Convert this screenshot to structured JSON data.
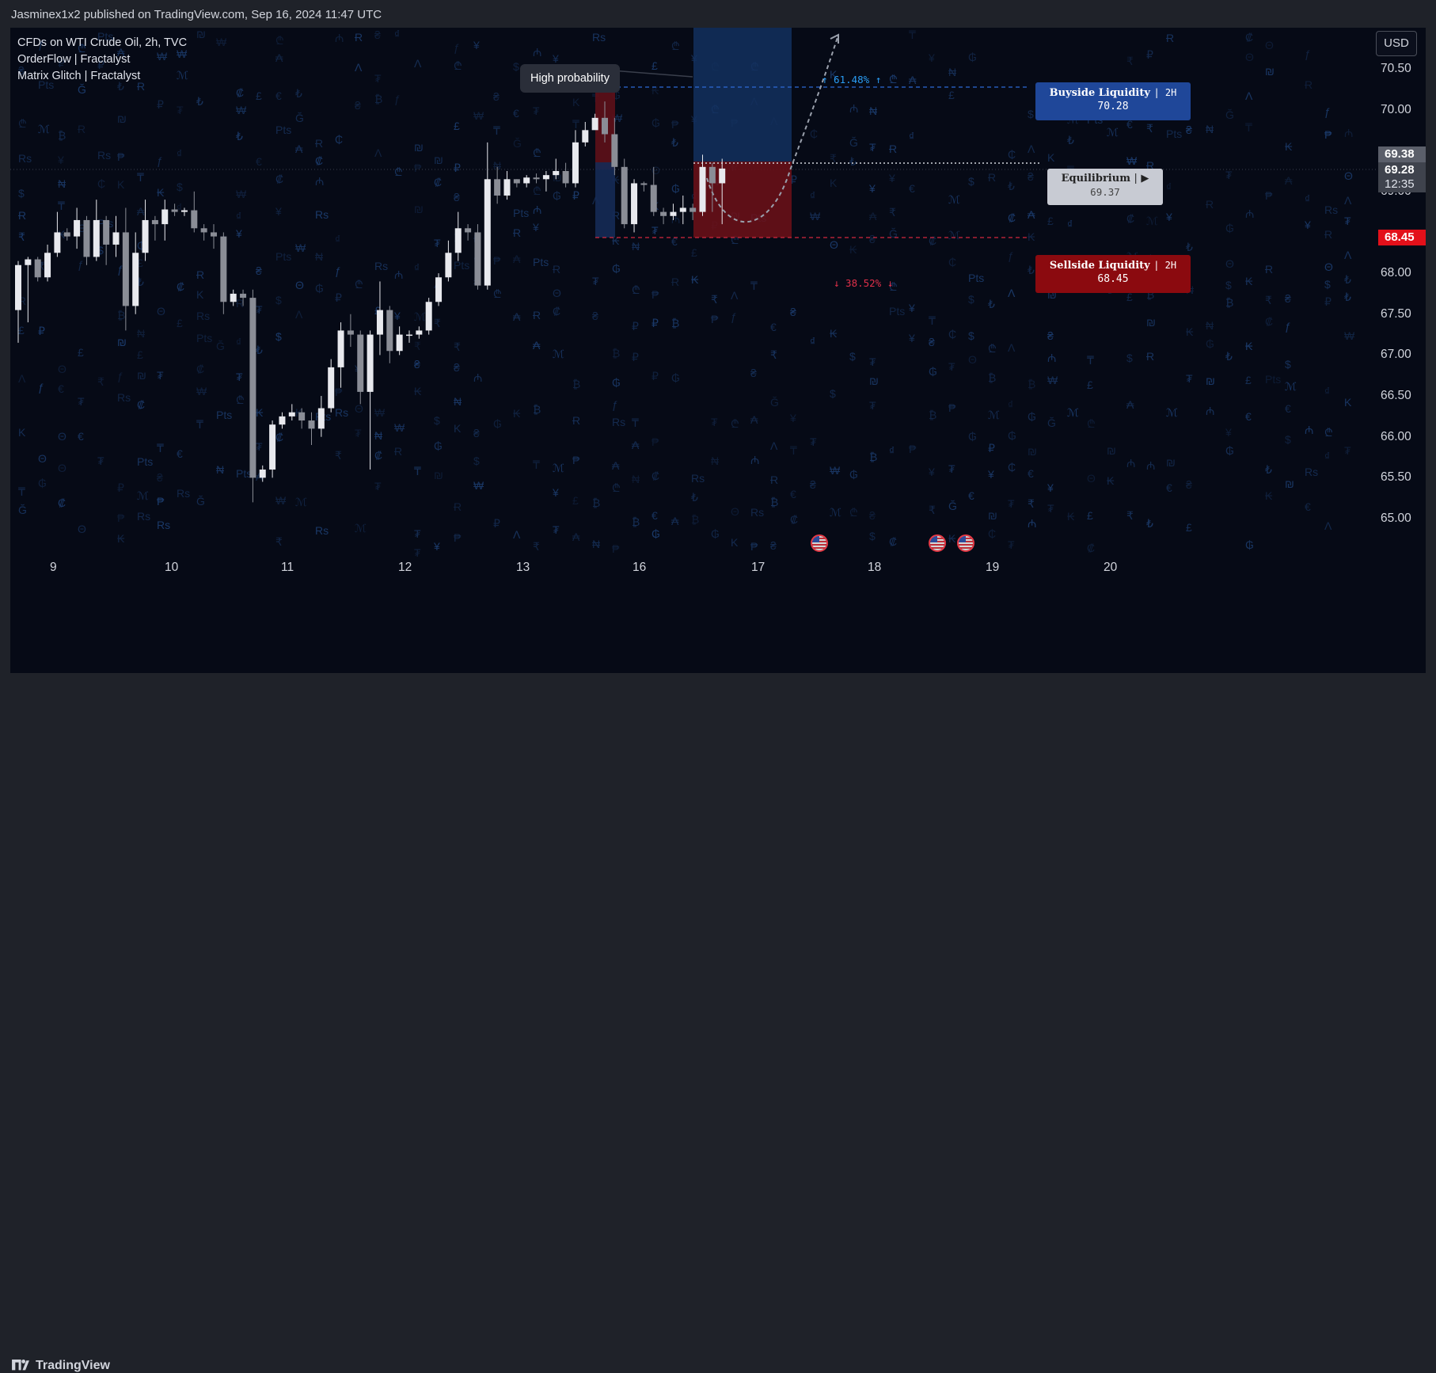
{
  "header": {
    "published": "Jasminex1x2 published on TradingView.com, Sep 16, 2024 11:47 UTC"
  },
  "legend": {
    "symbol": "CFDs on WTI Crude Oil, 2h, TVC",
    "indicator1": "OrderFlow | Fractalyst",
    "indicator2": "Matrix Glitch | Fractalyst"
  },
  "currency_button": "USD",
  "callout": "High probability",
  "buyside": {
    "label": "Buyside Liquidity",
    "tf": "2H",
    "value": "70.28"
  },
  "sellside": {
    "label": "Sellside Liquidity",
    "tf": "2H",
    "value": "68.45"
  },
  "equilibrium": {
    "label": "Equilibrium",
    "arrow": "▶",
    "value": "69.37"
  },
  "pct_up": "↑ 61.48% ↑",
  "pct_down": "↓ 38.52% ↓",
  "price_tags": {
    "last_gray": "69.38",
    "current": "69.28",
    "countdown": "12:35",
    "sell": "68.45"
  },
  "footer": {
    "brand": "TradingView"
  },
  "colors": {
    "background": "#060a16",
    "bull_candle": "#e8e9ee",
    "bear_candle": "#8a8d96",
    "buyside": "#1f4799",
    "sellside": "#8b0a0f",
    "glyph": "#1b3a6a"
  },
  "chart_data": {
    "type": "candlestick",
    "title": "CFDs on WTI Crude Oil, 2h, TVC",
    "ylim": [
      64.65,
      70.85
    ],
    "y_ticks": [
      "70.50",
      "70.00",
      "69.00",
      "68.00",
      "67.50",
      "67.00",
      "66.50",
      "66.00",
      "65.50",
      "65.00"
    ],
    "x_ticks": [
      "9",
      "10",
      "11",
      "12",
      "13",
      "16",
      "17",
      "18",
      "19",
      "20"
    ],
    "levels": {
      "buyside": 70.28,
      "sellside": 68.45,
      "equilibrium": 69.37
    },
    "candles": [
      [
        67.55,
        68.1,
        67.15,
        68.15
      ],
      [
        68.1,
        68.17,
        67.4,
        68.2
      ],
      [
        68.17,
        67.95,
        67.9,
        68.2
      ],
      [
        67.95,
        68.25,
        67.9,
        68.35
      ],
      [
        68.25,
        68.5,
        68.2,
        68.75
      ],
      [
        68.5,
        68.45,
        68.4,
        68.55
      ],
      [
        68.45,
        68.65,
        68.3,
        68.8
      ],
      [
        68.65,
        68.2,
        68.1,
        68.7
      ],
      [
        68.2,
        68.65,
        68.15,
        68.9
      ],
      [
        68.65,
        68.35,
        68.1,
        68.7
      ],
      [
        68.35,
        68.5,
        68.2,
        68.7
      ],
      [
        68.5,
        67.6,
        67.3,
        68.8
      ],
      [
        67.6,
        68.25,
        67.5,
        68.5
      ],
      [
        68.25,
        68.65,
        68.15,
        68.9
      ],
      [
        68.65,
        68.6,
        68.4,
        68.7
      ],
      [
        68.6,
        68.78,
        68.4,
        68.9
      ],
      [
        68.78,
        68.75,
        68.7,
        68.85
      ],
      [
        68.75,
        68.77,
        68.7,
        68.8
      ],
      [
        68.77,
        68.55,
        68.5,
        69.0
      ],
      [
        68.55,
        68.5,
        68.4,
        68.6
      ],
      [
        68.5,
        68.45,
        68.3,
        68.6
      ],
      [
        68.45,
        67.65,
        67.5,
        68.5
      ],
      [
        67.65,
        67.75,
        67.6,
        67.8
      ],
      [
        67.75,
        67.7,
        67.6,
        67.8
      ],
      [
        67.7,
        65.5,
        65.2,
        67.8
      ],
      [
        65.5,
        65.6,
        65.45,
        65.65
      ],
      [
        65.6,
        66.15,
        65.5,
        66.2
      ],
      [
        66.15,
        66.25,
        66.1,
        66.3
      ],
      [
        66.25,
        66.3,
        66.2,
        66.4
      ],
      [
        66.3,
        66.2,
        66.1,
        66.35
      ],
      [
        66.2,
        66.1,
        65.9,
        66.3
      ],
      [
        66.1,
        66.35,
        66.0,
        66.5
      ],
      [
        66.35,
        66.85,
        66.3,
        66.95
      ],
      [
        66.85,
        67.3,
        66.6,
        67.4
      ],
      [
        67.3,
        67.25,
        67.1,
        67.5
      ],
      [
        67.25,
        66.55,
        66.4,
        67.3
      ],
      [
        66.55,
        67.25,
        65.6,
        67.3
      ],
      [
        67.25,
        67.55,
        67.0,
        67.9
      ],
      [
        67.55,
        67.05,
        66.9,
        67.6
      ],
      [
        67.05,
        67.25,
        67.0,
        67.35
      ],
      [
        67.25,
        67.25,
        67.15,
        67.3
      ],
      [
        67.25,
        67.3,
        67.2,
        67.35
      ],
      [
        67.3,
        67.65,
        67.25,
        67.7
      ],
      [
        67.65,
        67.95,
        67.6,
        68.0
      ],
      [
        67.95,
        68.25,
        67.9,
        68.4
      ],
      [
        68.25,
        68.55,
        68.15,
        68.75
      ],
      [
        68.55,
        68.5,
        68.4,
        68.6
      ],
      [
        68.5,
        67.85,
        67.8,
        68.6
      ],
      [
        67.85,
        69.15,
        67.8,
        69.6
      ],
      [
        69.15,
        68.95,
        68.85,
        69.3
      ],
      [
        68.95,
        69.15,
        68.9,
        69.25
      ],
      [
        69.15,
        69.1,
        69.05,
        69.15
      ],
      [
        69.1,
        69.17,
        69.05,
        69.2
      ],
      [
        69.17,
        69.15,
        69.1,
        69.22
      ],
      [
        69.15,
        69.2,
        69.0,
        69.25
      ],
      [
        69.2,
        69.25,
        69.15,
        69.4
      ],
      [
        69.25,
        69.1,
        69.05,
        69.35
      ],
      [
        69.1,
        69.6,
        69.05,
        69.75
      ],
      [
        69.6,
        69.75,
        69.55,
        69.85
      ],
      [
        69.75,
        69.9,
        69.8,
        69.95
      ],
      [
        69.9,
        69.7,
        69.6,
        70.1
      ],
      [
        69.7,
        69.3,
        69.2,
        69.9
      ],
      [
        69.3,
        68.6,
        68.55,
        69.4
      ],
      [
        68.6,
        69.1,
        68.5,
        69.15
      ],
      [
        69.1,
        69.08,
        69.0,
        69.12
      ],
      [
        69.08,
        68.75,
        68.7,
        69.3
      ],
      [
        68.75,
        68.7,
        68.6,
        68.8
      ],
      [
        68.7,
        68.75,
        68.65,
        68.85
      ],
      [
        68.75,
        68.8,
        68.6,
        68.95
      ],
      [
        68.8,
        68.75,
        68.65,
        68.85
      ],
      [
        68.75,
        69.3,
        68.7,
        69.45
      ],
      [
        69.3,
        69.1,
        68.75,
        69.35
      ],
      [
        69.1,
        69.28,
        68.6,
        69.4
      ]
    ]
  }
}
